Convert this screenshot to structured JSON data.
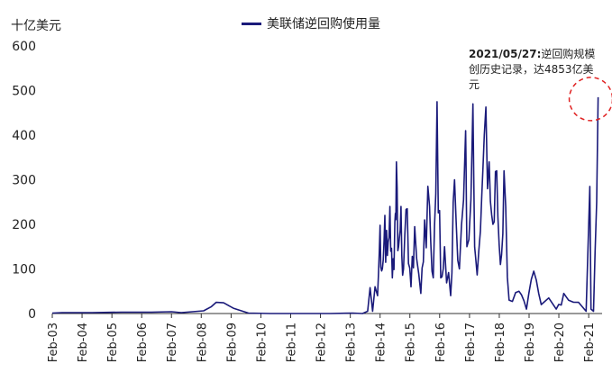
{
  "chart_data": {
    "type": "line",
    "unit_label": "十亿美元",
    "series": [
      {
        "name": "美联储逆回购使用量",
        "color": "#1a1a7a",
        "points": [
          [
            "2003-02-01",
            1
          ],
          [
            "2003-06-01",
            2
          ],
          [
            "2004-06-01",
            2
          ],
          [
            "2005-06-01",
            3
          ],
          [
            "2006-06-01",
            3
          ],
          [
            "2007-02-01",
            4
          ],
          [
            "2007-06-01",
            2
          ],
          [
            "2008-03-01",
            6
          ],
          [
            "2008-06-01",
            15
          ],
          [
            "2008-08-01",
            25
          ],
          [
            "2008-11-01",
            24
          ],
          [
            "2009-03-01",
            12
          ],
          [
            "2009-09-01",
            1
          ],
          [
            "2010-06-01",
            0
          ],
          [
            "2011-06-01",
            0
          ],
          [
            "2012-06-01",
            0
          ],
          [
            "2013-03-01",
            1
          ],
          [
            "2013-07-01",
            0
          ],
          [
            "2013-09-01",
            5
          ],
          [
            "2013-10-01",
            58
          ],
          [
            "2013-11-01",
            5
          ],
          [
            "2013-12-01",
            60
          ],
          [
            "2014-01-01",
            40
          ],
          [
            "2014-02-01",
            198
          ],
          [
            "2014-03-01",
            100
          ],
          [
            "2014-04-01",
            220
          ],
          [
            "2014-05-01",
            130
          ],
          [
            "2014-06-01",
            240
          ],
          [
            "2014-07-01",
            80
          ],
          [
            "2014-08-01",
            205
          ],
          [
            "2014-08-20",
            340
          ],
          [
            "2014-09-15",
            150
          ],
          [
            "2014-10-15",
            240
          ],
          [
            "2014-11-15",
            100
          ],
          [
            "2014-12-31",
            235
          ],
          [
            "2015-02-15",
            60
          ],
          [
            "2015-04-01",
            195
          ],
          [
            "2015-06-15",
            45
          ],
          [
            "2015-08-01",
            210
          ],
          [
            "2015-09-30",
            240
          ],
          [
            "2015-11-15",
            80
          ],
          [
            "2015-12-31",
            475
          ],
          [
            "2016-02-15",
            80
          ],
          [
            "2016-04-01",
            150
          ],
          [
            "2016-06-15",
            40
          ],
          [
            "2016-08-01",
            300
          ],
          [
            "2016-09-30",
            100
          ],
          [
            "2016-12-15",
            410
          ],
          [
            "2016-12-31",
            150
          ],
          [
            "2017-03-15",
            470
          ],
          [
            "2017-04-15",
            130
          ],
          [
            "2017-06-15",
            185
          ],
          [
            "2017-08-01",
            400
          ],
          [
            "2017-09-30",
            340
          ],
          [
            "2017-11-15",
            200
          ],
          [
            "2017-12-31",
            320
          ],
          [
            "2018-02-15",
            110
          ],
          [
            "2018-03-31",
            320
          ],
          [
            "2018-06-01",
            30
          ],
          [
            "2018-09-30",
            50
          ],
          [
            "2018-12-31",
            10
          ],
          [
            "2019-03-31",
            95
          ],
          [
            "2019-06-30",
            20
          ],
          [
            "2019-09-30",
            35
          ],
          [
            "2019-12-31",
            10
          ],
          [
            "2020-04-01",
            45
          ],
          [
            "2020-09-30",
            25
          ],
          [
            "2020-12-31",
            5
          ],
          [
            "2021-02-15",
            285
          ],
          [
            "2021-03-01",
            10
          ],
          [
            "2021-04-01",
            5
          ],
          [
            "2021-04-20",
            135
          ],
          [
            "2021-05-10",
            250
          ],
          [
            "2021-05-27",
            485
          ]
        ]
      }
    ],
    "y_ticks": [
      0,
      100,
      200,
      300,
      400,
      500,
      600
    ],
    "ylim": [
      0,
      600
    ],
    "x_ticks": [
      "Feb-03",
      "Feb-04",
      "Feb-05",
      "Feb-06",
      "Feb-07",
      "Feb-08",
      "Feb-09",
      "Feb-10",
      "Feb-11",
      "Feb-12",
      "Feb-13",
      "Feb-14",
      "Feb-15",
      "Feb-16",
      "Feb-17",
      "Feb-18",
      "Feb-19",
      "Feb-20",
      "Feb-21"
    ],
    "annotation": {
      "date": "2021/05/27:",
      "text": "逆回购规模创历史记录，达4853亿美元",
      "highlight_color": "#e02020"
    }
  }
}
